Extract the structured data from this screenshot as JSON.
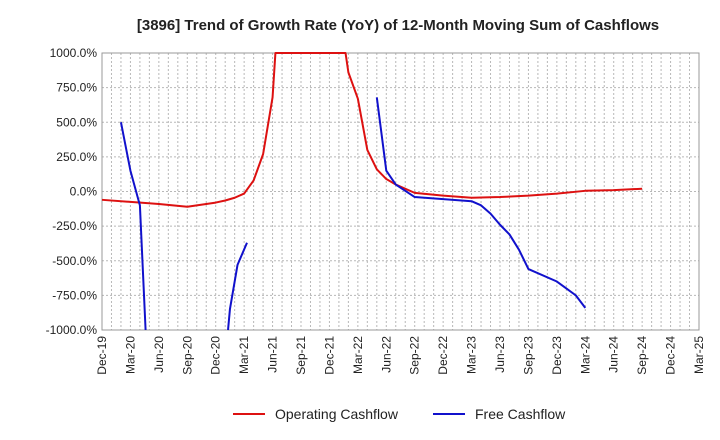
{
  "chart_data": {
    "type": "line",
    "title": "[3896]  Trend of Growth Rate (YoY) of 12-Month Moving Sum of Cashflows",
    "ylim": [
      -1000,
      1000
    ],
    "y_ticks": [
      1000,
      750,
      500,
      250,
      0,
      -250,
      -500,
      -750,
      -1000
    ],
    "y_tick_labels": [
      "1000.0%",
      "750.0%",
      "500.0%",
      "250.0%",
      "0.0%",
      "-250.0%",
      "-500.0%",
      "-750.0%",
      "-1000.0%"
    ],
    "x_range": [
      "2019-12",
      "2025-03"
    ],
    "x_tick_labels": [
      "Dec-19",
      "Mar-20",
      "Jun-20",
      "Sep-20",
      "Dec-20",
      "Mar-21",
      "Jun-21",
      "Sep-21",
      "Dec-21",
      "Mar-22",
      "Jun-22",
      "Sep-22",
      "Dec-22",
      "Mar-23",
      "Jun-23",
      "Sep-23",
      "Dec-23",
      "Mar-24",
      "Jun-24",
      "Sep-24",
      "Dec-24",
      "Mar-25"
    ],
    "grid": true,
    "legend_position": "bottom",
    "series": [
      {
        "name": "Operating Cashflow",
        "color": "#dd1111",
        "points": [
          {
            "x": "2019-12",
            "y": -60
          },
          {
            "x": "2020-03",
            "y": -75
          },
          {
            "x": "2020-06",
            "y": -90
          },
          {
            "x": "2020-09",
            "y": -110
          },
          {
            "x": "2020-12",
            "y": -80
          },
          {
            "x": "2021-01",
            "y": -65
          },
          {
            "x": "2021-02",
            "y": -45
          },
          {
            "x": "2021-03",
            "y": -15
          },
          {
            "x": "2021-04",
            "y": 80
          },
          {
            "x": "2021-05",
            "y": 270
          },
          {
            "x": "2021-06",
            "y": 680
          },
          {
            "x": "2021-06.3",
            "y": 1000
          },
          {
            "x": "2022-01.7",
            "y": 1000
          },
          {
            "x": "2022-02",
            "y": 860
          },
          {
            "x": "2022-03",
            "y": 670
          },
          {
            "x": "2022-04",
            "y": 300
          },
          {
            "x": "2022-05",
            "y": 160
          },
          {
            "x": "2022-06",
            "y": 90
          },
          {
            "x": "2022-07",
            "y": 50
          },
          {
            "x": "2022-09",
            "y": -10
          },
          {
            "x": "2022-12",
            "y": -30
          },
          {
            "x": "2023-03",
            "y": -45
          },
          {
            "x": "2023-06",
            "y": -40
          },
          {
            "x": "2023-09",
            "y": -30
          },
          {
            "x": "2023-12",
            "y": -15
          },
          {
            "x": "2024-03",
            "y": 5
          },
          {
            "x": "2024-06",
            "y": 10
          },
          {
            "x": "2024-09",
            "y": 20
          }
        ]
      },
      {
        "name": "Free Cashflow",
        "color": "#1111cc",
        "segments": [
          [
            {
              "x": "2020-02",
              "y": 500
            },
            {
              "x": "2020-03",
              "y": 150
            },
            {
              "x": "2020-04",
              "y": -100
            },
            {
              "x": "2020-04.6",
              "y": -1000
            }
          ],
          [
            {
              "x": "2021-01.3",
              "y": -1000
            },
            {
              "x": "2021-01.5",
              "y": -850
            },
            {
              "x": "2021-02.3",
              "y": -530
            },
            {
              "x": "2021-03.3",
              "y": -370
            }
          ],
          [
            {
              "x": "2022-05",
              "y": 680
            },
            {
              "x": "2022-06",
              "y": 150
            },
            {
              "x": "2022-07",
              "y": 50
            },
            {
              "x": "2022-09",
              "y": -40
            },
            {
              "x": "2022-12",
              "y": -55
            },
            {
              "x": "2023-03",
              "y": -70
            },
            {
              "x": "2023-04",
              "y": -100
            },
            {
              "x": "2023-05",
              "y": -160
            },
            {
              "x": "2023-06",
              "y": -240
            },
            {
              "x": "2023-07",
              "y": -310
            },
            {
              "x": "2023-08",
              "y": -420
            },
            {
              "x": "2023-09",
              "y": -560
            },
            {
              "x": "2023-12",
              "y": -650
            },
            {
              "x": "2024-01",
              "y": -700
            },
            {
              "x": "2024-02",
              "y": -750
            },
            {
              "x": "2024-03",
              "y": -840
            }
          ]
        ]
      }
    ]
  }
}
